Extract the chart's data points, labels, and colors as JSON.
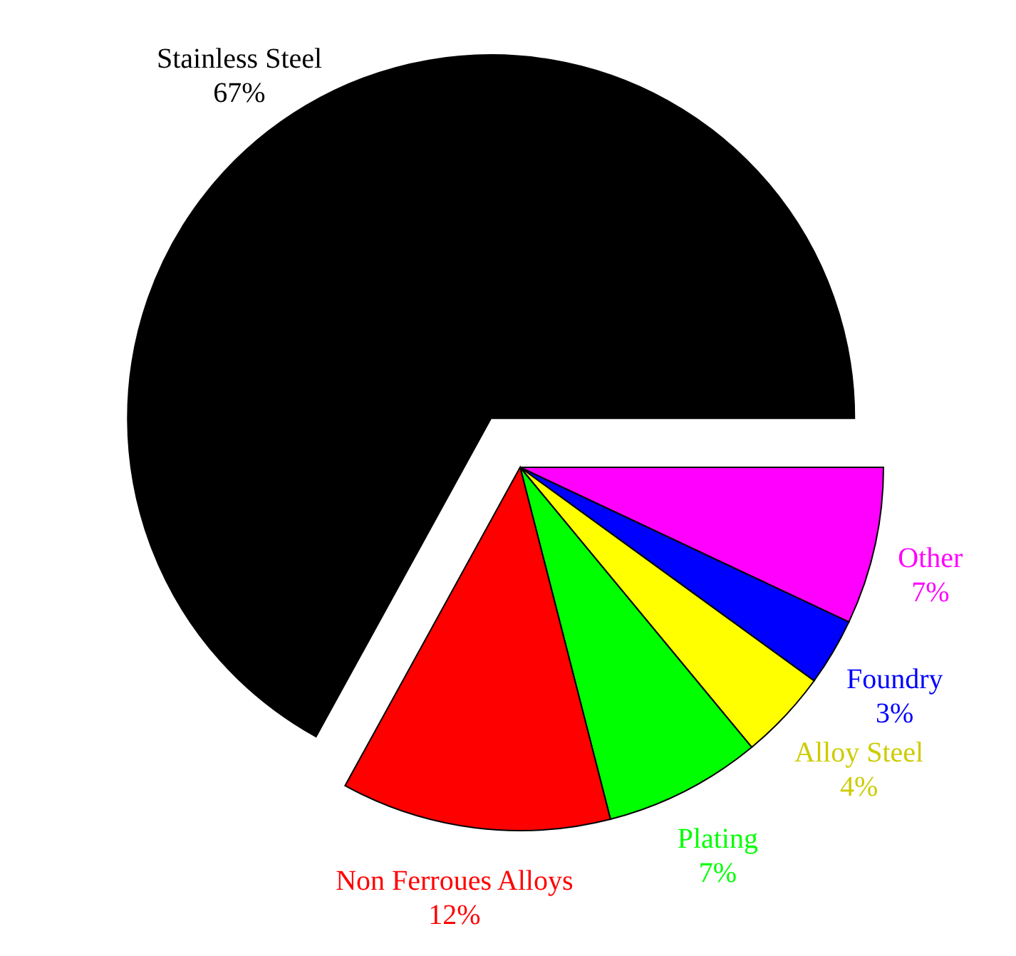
{
  "chart_data": {
    "type": "pie",
    "categories": [
      "Other",
      "Foundry",
      "Alloy Steel",
      "Plating",
      "Non Ferroues Alloys",
      "Stainless Steel"
    ],
    "values": [
      7,
      3,
      4,
      7,
      12,
      67
    ],
    "value_labels": [
      "7%",
      "3%",
      "4%",
      "7%",
      "12%",
      "67%"
    ],
    "colors": [
      "#ff00ff",
      "#0000ff",
      "#ffff00",
      "#00ff00",
      "#ff0000",
      "#000000"
    ]
  }
}
